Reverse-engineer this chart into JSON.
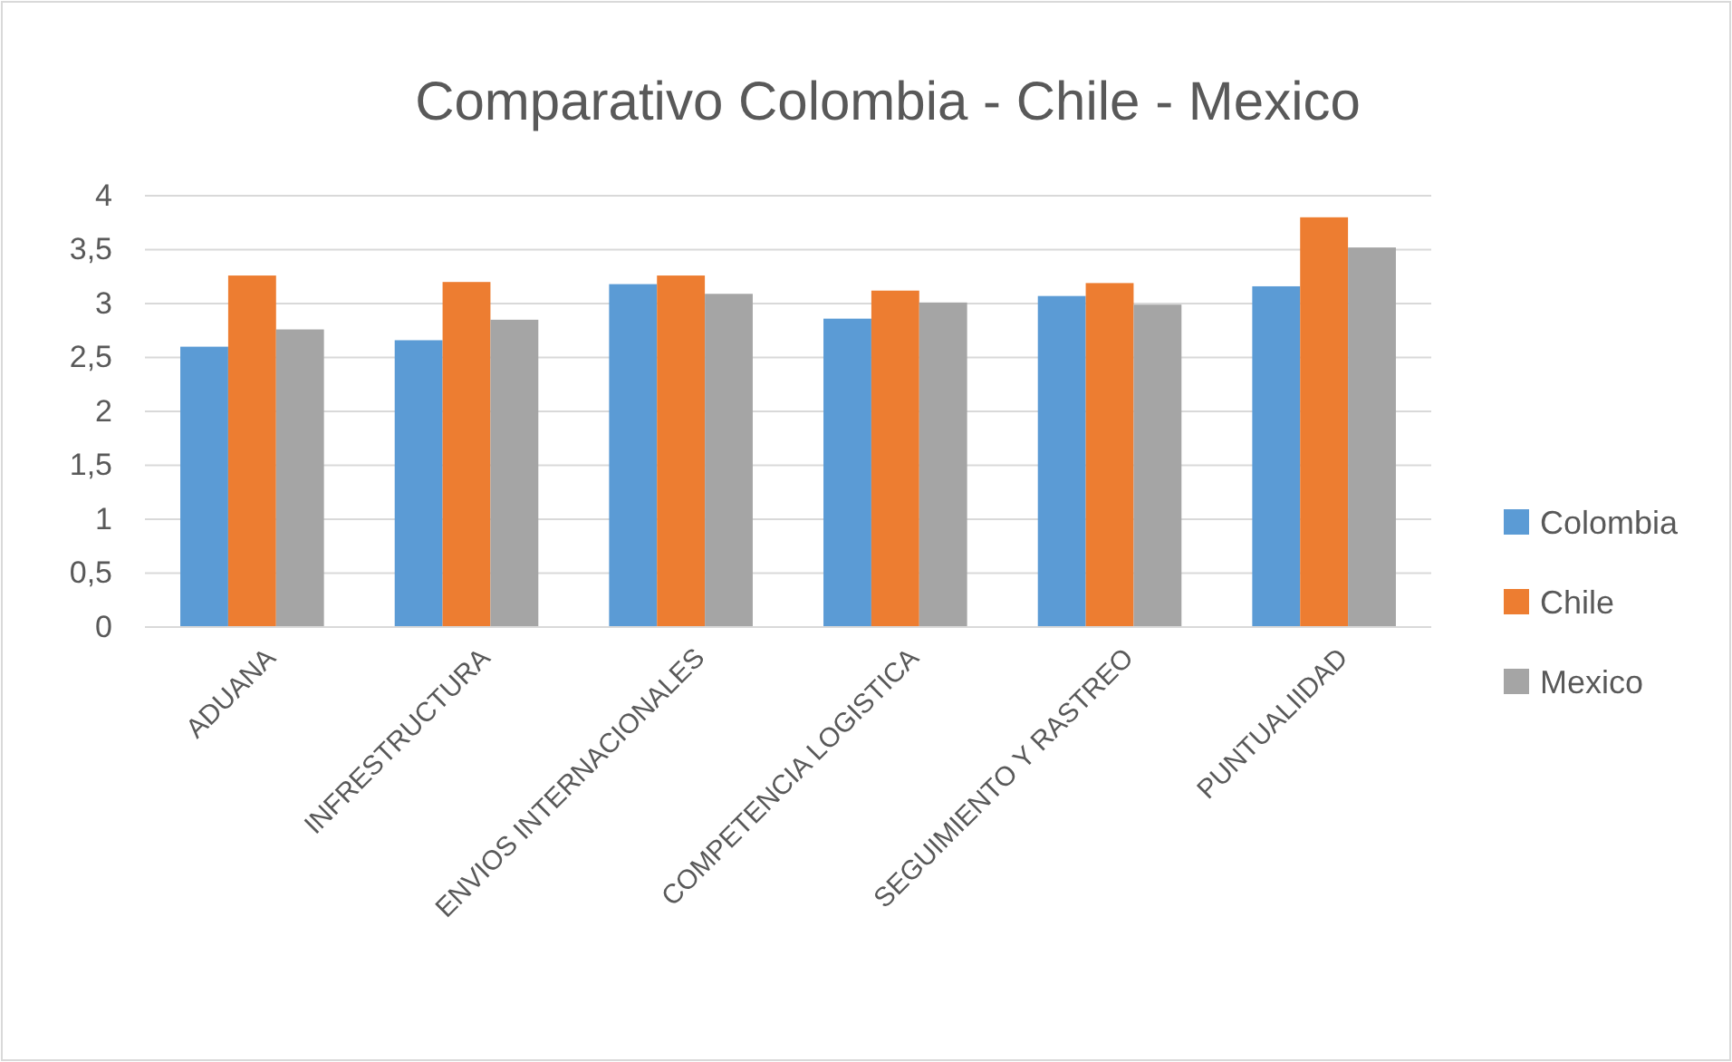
{
  "chart_data": {
    "type": "bar",
    "title": "Comparativo Colombia - Chile - Mexico",
    "categories": [
      "ADUANA",
      "INFRESTRUCTURA",
      "ENVIOS INTERNACIONALES",
      "COMPETENCIA LOGISTICA",
      "SEGUIMIENTO Y RASTREO",
      "PUNTUALIIDAD"
    ],
    "series": [
      {
        "name": "Colombia",
        "color": "#5b9bd5",
        "values": [
          2.6,
          2.66,
          3.18,
          2.86,
          3.07,
          3.16
        ]
      },
      {
        "name": "Chile",
        "color": "#ed7d31",
        "values": [
          3.26,
          3.2,
          3.26,
          3.12,
          3.19,
          3.8
        ]
      },
      {
        "name": "Mexico",
        "color": "#a5a5a5",
        "values": [
          2.76,
          2.85,
          3.09,
          3.01,
          2.99,
          3.52
        ]
      }
    ],
    "ylim": [
      0,
      4
    ],
    "yticks": [
      0,
      {
        "value": 0.5,
        "label": "0,5"
      },
      1,
      {
        "value": 1.5,
        "label": "1,5"
      },
      2,
      {
        "value": 2.5,
        "label": "2,5"
      },
      3,
      {
        "value": 3.5,
        "label": "3,5"
      },
      4
    ],
    "grid": "y",
    "legend": "right"
  }
}
